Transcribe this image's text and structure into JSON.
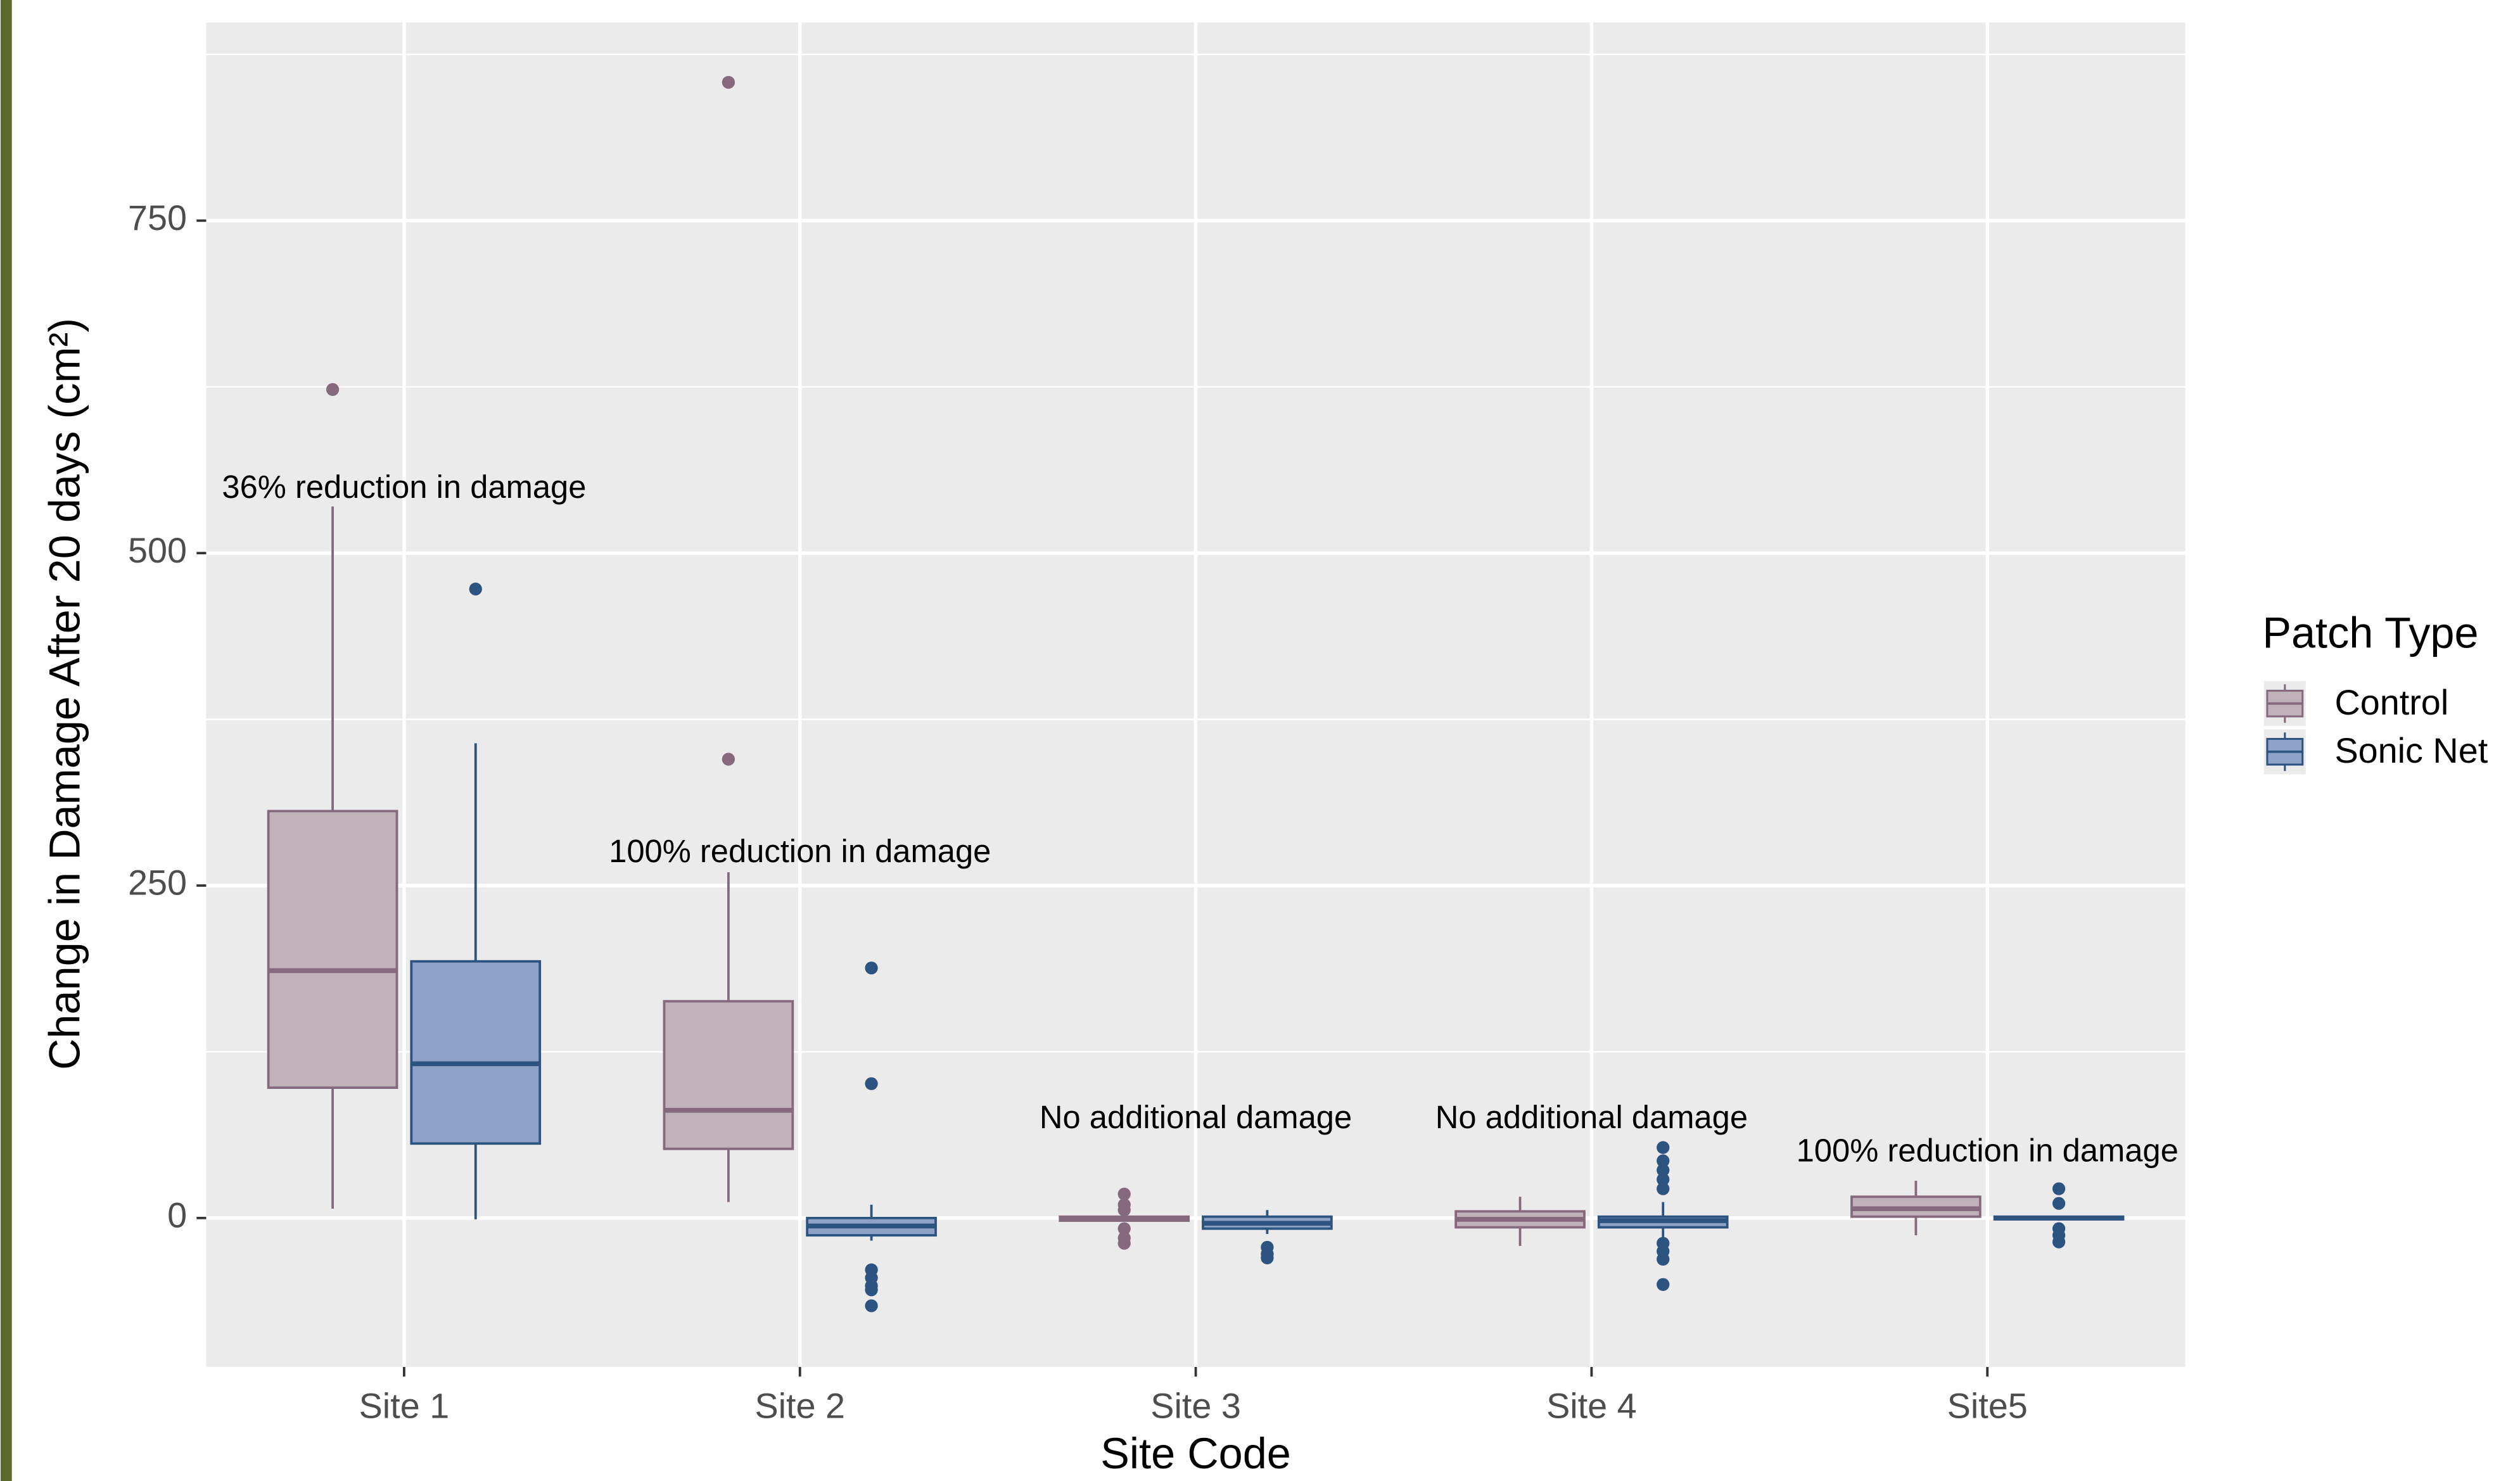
{
  "chart_data": {
    "type": "boxplot",
    "x_label": "Site Code",
    "y_label": "Change in Damage After 20 days (cm²)",
    "categories": [
      "Site 1",
      "Site 2",
      "Site 3",
      "Site 4",
      "Site5"
    ],
    "ylim": [
      -112,
      899
    ],
    "yticks": [
      0,
      250,
      500,
      750
    ],
    "y_minor_grid": [
      125,
      375,
      625,
      875
    ],
    "grid": true,
    "legend_title": "Patch Type",
    "legend_position": "right",
    "series": [
      {
        "name": "Control",
        "color": "#c1b1b9",
        "edge": "#86697d",
        "boxes": [
          {
            "low": 7,
            "q1": 98,
            "median": 186,
            "q3": 306,
            "high": 535,
            "outliers": [
              623
            ]
          },
          {
            "low": 12,
            "q1": 52,
            "median": 81,
            "q3": 163,
            "high": 260,
            "outliers": [
              345,
              854
            ]
          },
          {
            "low": -2,
            "q1": -2,
            "median": 0,
            "q3": 1,
            "high": 1,
            "outliers": [
              18,
              10,
              6,
              -8,
              -15,
              -19
            ]
          },
          {
            "low": -21,
            "q1": -7,
            "median": -1,
            "q3": 5,
            "high": 16,
            "outliers": []
          },
          {
            "low": -13,
            "q1": 1,
            "median": 7,
            "q3": 16,
            "high": 28,
            "outliers": []
          }
        ]
      },
      {
        "name": "Sonic Net",
        "color": "#8ea3c7",
        "edge": "#2d5380",
        "boxes": [
          {
            "low": -1,
            "q1": 56,
            "median": 116,
            "q3": 193,
            "high": 357,
            "outliers": [
              473
            ]
          },
          {
            "low": -17,
            "q1": -13,
            "median": -6,
            "q3": 0,
            "high": 10,
            "outliers": [
              188,
              101,
              -39,
              -45,
              -51,
              -54,
              -66
            ]
          },
          {
            "low": -12,
            "q1": -8,
            "median": -4,
            "q3": 1,
            "high": 6,
            "outliers": [
              -22,
              -27,
              -30
            ]
          },
          {
            "low": -17,
            "q1": -7,
            "median": -2,
            "q3": 1,
            "high": 12,
            "outliers": [
              53,
              43,
              36,
              29,
              22,
              -19,
              -25,
              -31,
              -50
            ]
          },
          {
            "low": -2,
            "q1": -1,
            "median": 0,
            "q3": 1,
            "high": 1,
            "outliers": [
              22,
              11,
              -8,
              -13,
              -18
            ]
          }
        ]
      }
    ],
    "annotations": [
      {
        "text": "36% reduction in damage",
        "category": 0,
        "y": 548
      },
      {
        "text": "100% reduction in damage",
        "category": 1,
        "y": 274
      },
      {
        "text": "No additional damage",
        "category": 2,
        "y": 74
      },
      {
        "text": "No additional damage",
        "category": 3,
        "y": 74
      },
      {
        "text": "100% reduction in damage",
        "category": 4,
        "y": 49
      }
    ]
  }
}
